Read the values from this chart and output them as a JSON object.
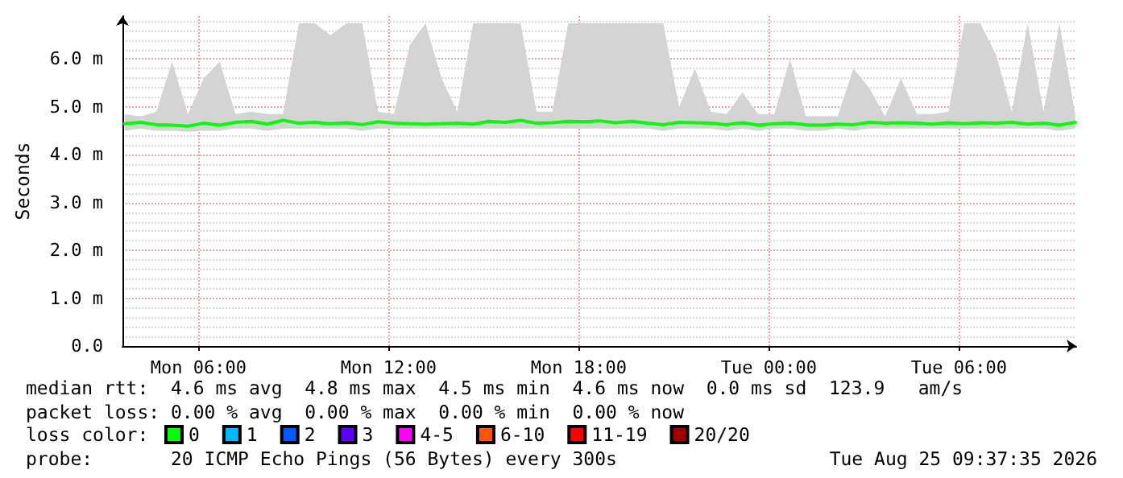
{
  "chart_data": {
    "type": "line",
    "ylabel": "Seconds",
    "x": [
      "2026-08-24T03:40",
      "2026-08-24T04:10",
      "2026-08-24T04:40",
      "2026-08-24T05:10",
      "2026-08-24T05:40",
      "2026-08-24T06:10",
      "2026-08-24T06:40",
      "2026-08-24T07:10",
      "2026-08-24T07:40",
      "2026-08-24T08:10",
      "2026-08-24T08:40",
      "2026-08-24T09:10",
      "2026-08-24T09:40",
      "2026-08-24T10:10",
      "2026-08-24T10:40",
      "2026-08-24T11:10",
      "2026-08-24T11:40",
      "2026-08-24T12:10",
      "2026-08-24T12:40",
      "2026-08-24T13:10",
      "2026-08-24T13:40",
      "2026-08-24T14:10",
      "2026-08-24T14:40",
      "2026-08-24T15:10",
      "2026-08-24T15:40",
      "2026-08-24T16:10",
      "2026-08-24T16:40",
      "2026-08-24T17:10",
      "2026-08-24T17:40",
      "2026-08-24T18:10",
      "2026-08-24T18:40",
      "2026-08-24T19:10",
      "2026-08-24T19:40",
      "2026-08-24T20:10",
      "2026-08-24T20:40",
      "2026-08-24T21:10",
      "2026-08-24T21:40",
      "2026-08-24T22:10",
      "2026-08-24T22:40",
      "2026-08-24T23:10",
      "2026-08-24T23:40",
      "2026-08-25T00:10",
      "2026-08-25T00:40",
      "2026-08-25T01:10",
      "2026-08-25T01:40",
      "2026-08-25T02:10",
      "2026-08-25T02:40",
      "2026-08-25T03:10",
      "2026-08-25T03:40",
      "2026-08-25T04:10",
      "2026-08-25T04:40",
      "2026-08-25T05:10",
      "2026-08-25T05:40",
      "2026-08-25T06:10",
      "2026-08-25T06:40",
      "2026-08-25T07:10",
      "2026-08-25T07:40",
      "2026-08-25T08:10",
      "2026-08-25T08:40",
      "2026-08-25T09:10",
      "2026-08-25T09:40"
    ],
    "series": [
      {
        "name": "0",
        "color": "#00ff00",
        "values": [
          4.65,
          4.68,
          4.63,
          4.62,
          4.6,
          4.66,
          4.62,
          4.68,
          4.7,
          4.64,
          4.72,
          4.66,
          4.68,
          4.65,
          4.67,
          4.63,
          4.69,
          4.66,
          4.65,
          4.64,
          4.65,
          4.66,
          4.64,
          4.7,
          4.68,
          4.72,
          4.66,
          4.67,
          4.7,
          4.69,
          4.71,
          4.67,
          4.7,
          4.66,
          4.63,
          4.68,
          4.67,
          4.66,
          4.63,
          4.67,
          4.62,
          4.65,
          4.66,
          4.63,
          4.62,
          4.64,
          4.63,
          4.68,
          4.66,
          4.67,
          4.66,
          4.64,
          4.67,
          4.65,
          4.67,
          4.66,
          4.68,
          4.64,
          4.66,
          4.62,
          4.68
        ],
        "lower": [
          4.5,
          4.55,
          4.5,
          4.5,
          4.48,
          4.5,
          4.5,
          4.55,
          4.55,
          4.5,
          4.55,
          4.55,
          4.55,
          4.55,
          4.55,
          4.5,
          4.55,
          4.55,
          4.55,
          4.55,
          4.55,
          4.55,
          4.55,
          4.55,
          4.55,
          4.55,
          4.55,
          4.55,
          4.55,
          4.55,
          4.55,
          4.55,
          4.55,
          4.55,
          4.5,
          4.55,
          4.55,
          4.55,
          4.5,
          4.55,
          4.5,
          4.55,
          4.55,
          4.5,
          4.5,
          4.55,
          4.5,
          4.55,
          4.55,
          4.55,
          4.55,
          4.55,
          4.55,
          4.55,
          4.55,
          4.55,
          4.55,
          4.55,
          4.55,
          4.5,
          4.55
        ],
        "upper": [
          4.85,
          4.8,
          4.9,
          5.95,
          4.85,
          5.6,
          5.95,
          4.85,
          4.9,
          4.85,
          4.85,
          6.75,
          6.75,
          6.5,
          6.75,
          6.75,
          4.9,
          4.85,
          6.3,
          6.75,
          5.6,
          4.9,
          6.75,
          6.75,
          6.75,
          6.75,
          4.9,
          4.9,
          6.75,
          6.75,
          6.75,
          6.75,
          6.75,
          6.75,
          6.75,
          5.0,
          5.8,
          4.9,
          4.85,
          5.3,
          4.85,
          4.85,
          6.0,
          4.8,
          4.8,
          4.8,
          5.8,
          5.4,
          4.8,
          5.6,
          4.85,
          4.85,
          4.9,
          6.75,
          6.75,
          6.1,
          4.9,
          6.75,
          4.9,
          6.75,
          4.85
        ]
      },
      {
        "name": "1",
        "color": "#00b8ff",
        "values": [
          null,
          null,
          null,
          null,
          null,
          null,
          null,
          null,
          null,
          null,
          null,
          null,
          null,
          null,
          null,
          null,
          null,
          null,
          null,
          null,
          null,
          null,
          null,
          null,
          null,
          null,
          null,
          null,
          null,
          null,
          null,
          null,
          null,
          null,
          null,
          null,
          null,
          null,
          null,
          null,
          null,
          null,
          null,
          null,
          null,
          null,
          null,
          null,
          null,
          null,
          null,
          null,
          null,
          null,
          null,
          null,
          null,
          null,
          null,
          null,
          null
        ]
      },
      {
        "name": "2",
        "color": "#0059ff",
        "values": [
          null,
          null,
          null,
          null,
          null,
          null,
          null,
          null,
          null,
          null,
          null,
          null,
          null,
          null,
          null,
          null,
          null,
          null,
          null,
          null,
          null,
          null,
          null,
          null,
          null,
          null,
          null,
          null,
          null,
          null,
          null,
          null,
          null,
          null,
          null,
          null,
          null,
          null,
          null,
          null,
          null,
          null,
          null,
          null,
          null,
          null,
          null,
          null,
          null,
          null,
          null,
          null,
          null,
          null,
          null,
          null,
          null,
          null,
          null,
          null,
          null
        ]
      },
      {
        "name": "3",
        "color": "#5e00ff",
        "values": [
          null,
          null,
          null,
          null,
          null,
          null,
          null,
          null,
          null,
          null,
          null,
          null,
          null,
          null,
          null,
          null,
          null,
          null,
          null,
          null,
          null,
          null,
          null,
          null,
          null,
          null,
          null,
          null,
          null,
          null,
          null,
          null,
          null,
          null,
          null,
          null,
          null,
          null,
          null,
          null,
          null,
          null,
          null,
          null,
          null,
          null,
          null,
          null,
          null,
          null,
          null,
          null,
          null,
          null,
          null,
          null,
          null,
          null,
          null,
          null,
          null
        ]
      },
      {
        "name": "4-5",
        "color": "#ff00ff",
        "values": [
          null,
          null,
          null,
          null,
          null,
          null,
          null,
          null,
          null,
          null,
          null,
          null,
          null,
          null,
          null,
          null,
          null,
          null,
          null,
          null,
          null,
          null,
          null,
          null,
          null,
          null,
          null,
          null,
          null,
          null,
          null,
          null,
          null,
          null,
          null,
          null,
          null,
          null,
          null,
          null,
          null,
          null,
          null,
          null,
          null,
          null,
          null,
          null,
          null,
          null,
          null,
          null,
          null,
          null,
          null,
          null,
          null,
          null,
          null,
          null,
          null
        ]
      },
      {
        "name": "6-10",
        "color": "#ff5500",
        "values": [
          null,
          null,
          null,
          null,
          null,
          null,
          null,
          null,
          null,
          null,
          null,
          null,
          null,
          null,
          null,
          null,
          null,
          null,
          null,
          null,
          null,
          null,
          null,
          null,
          null,
          null,
          null,
          null,
          null,
          null,
          null,
          null,
          null,
          null,
          null,
          null,
          null,
          null,
          null,
          null,
          null,
          null,
          null,
          null,
          null,
          null,
          null,
          null,
          null,
          null,
          null,
          null,
          null,
          null,
          null,
          null,
          null,
          null,
          null,
          null,
          null
        ]
      },
      {
        "name": "11-19",
        "color": "#ff0000",
        "values": [
          null,
          null,
          null,
          null,
          null,
          null,
          null,
          null,
          null,
          null,
          null,
          null,
          null,
          null,
          null,
          null,
          null,
          null,
          null,
          null,
          null,
          null,
          null,
          null,
          null,
          null,
          null,
          null,
          null,
          null,
          null,
          null,
          null,
          null,
          null,
          null,
          null,
          null,
          null,
          null,
          null,
          null,
          null,
          null,
          null,
          null,
          null,
          null,
          null,
          null,
          null,
          null,
          null,
          null,
          null,
          null,
          null,
          null,
          null,
          null,
          null
        ]
      },
      {
        "name": "20/20",
        "color": "#a10000",
        "values": [
          null,
          null,
          null,
          null,
          null,
          null,
          null,
          null,
          null,
          null,
          null,
          null,
          null,
          null,
          null,
          null,
          null,
          null,
          null,
          null,
          null,
          null,
          null,
          null,
          null,
          null,
          null,
          null,
          null,
          null,
          null,
          null,
          null,
          null,
          null,
          null,
          null,
          null,
          null,
          null,
          null,
          null,
          null,
          null,
          null,
          null,
          null,
          null,
          null,
          null,
          null,
          null,
          null,
          null,
          null,
          null,
          null,
          null,
          null,
          null,
          null
        ]
      }
    ],
    "legend": "bottom",
    "legend_title": "loss color:",
    "marker": "none",
    "grid": true,
    "xlim": [
      "2026-08-24T03:36",
      "2026-08-25T09:42"
    ],
    "xticks": [
      {
        "value": "2026-08-24T06:00",
        "label": "Mon 06:00"
      },
      {
        "value": "2026-08-24T12:00",
        "label": "Mon 12:00"
      },
      {
        "value": "2026-08-24T18:00",
        "label": "Mon 18:00"
      },
      {
        "value": "2026-08-25T00:00",
        "label": "Tue 00:00"
      },
      {
        "value": "2026-08-25T06:00",
        "label": "Tue 06:00"
      }
    ],
    "ylim": [
      0,
      6.9
    ],
    "yticks": [
      {
        "value": 0,
        "label": "0.0"
      },
      {
        "value": 1,
        "label": "1.0 m"
      },
      {
        "value": 2,
        "label": "2.0 m"
      },
      {
        "value": 3,
        "label": "3.0 m"
      },
      {
        "value": 4,
        "label": "4.0 m"
      },
      {
        "value": 5,
        "label": "5.0 m"
      },
      {
        "value": 6,
        "label": "6.0 m"
      }
    ],
    "annotations": [
      "median rtt:  4.6 ms avg  4.8 ms max  4.5 ms min  4.6 ms now  0.0 ms sd  123.9   am/s",
      "packet loss: 0.00 % avg  0.00 % max  0.00 % min  0.00 % now",
      "probe:       20 ICMP Echo Pings (56 Bytes) every 300s",
      "Tue Aug 25 09:37:35 2026"
    ]
  }
}
